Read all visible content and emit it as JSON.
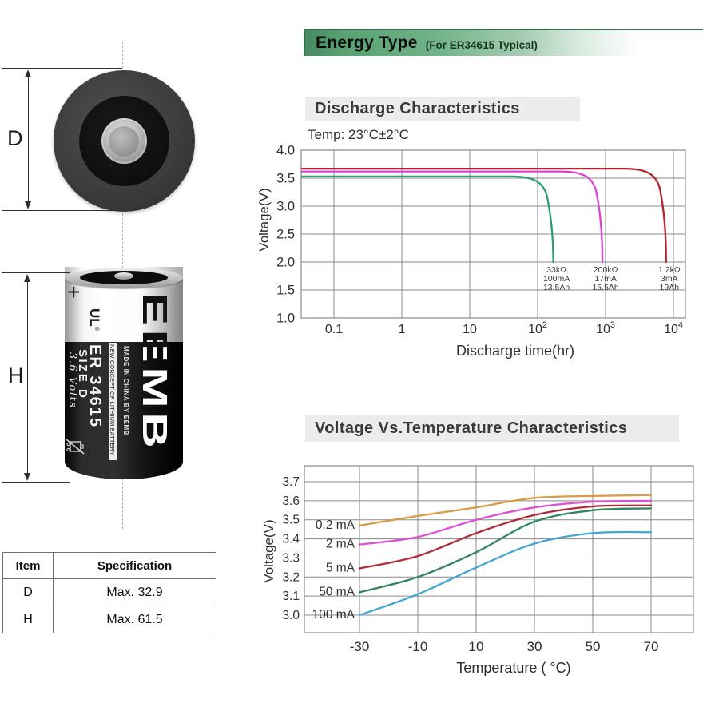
{
  "left_panel": {
    "dimension_d_label": "D",
    "dimension_h_label": "H",
    "battery": {
      "plus_label": "+",
      "ul_label": "UL",
      "reg_mark": "®",
      "brand_vertical": "EEMB",
      "model_text": "ER 34615",
      "size_text": "SIZE D",
      "volts_text": "3.6 Volts",
      "strip_text": "NEW CONCEPT OF LITHIUM BATTERY",
      "made_in_text": "MADE IN CHINA BY EEMB"
    },
    "spec_table": {
      "headers": [
        "Item",
        "Specification"
      ],
      "rows": [
        {
          "item": "D",
          "spec": "Max. 32.9"
        },
        {
          "item": "H",
          "spec": "Max. 61.5"
        }
      ]
    }
  },
  "header": {
    "title": "Energy Type",
    "subtitle": "(For ER34615 Typical)",
    "accent_green": "#468a61"
  },
  "section_headings": {
    "discharge": "Discharge Characteristics",
    "temperature": "Voltage Vs.Temperature Characteristics"
  },
  "chart_data": [
    {
      "type": "line",
      "title": "Discharge Characteristics",
      "note": "Temp: 23°C±2°C",
      "xlabel": "Discharge time(hr)",
      "ylabel": "Voltage(V)",
      "x_scale": "log",
      "x_ticks": [
        "0.1",
        "1",
        "10",
        "10^2",
        "10^3",
        "10^4"
      ],
      "y_ticks": [
        "4.0",
        "3.5",
        "3.0",
        "2.5",
        "2.0",
        "1.5",
        "1.0"
      ],
      "ylim": [
        1.0,
        4.0
      ],
      "grid": true,
      "grid_color": "#8a8a8a",
      "series": [
        {
          "name": "33kΩ 100mA 13.5Ah",
          "color": "#2aa06b",
          "plateau_v": 3.53,
          "end_hr": 170,
          "cutoff_v": 2.0,
          "label_lines": [
            "33kΩ",
            "100mA",
            "13.5Ah"
          ]
        },
        {
          "name": "200kΩ 17mA 15.5Ah",
          "color": "#d943d4",
          "plateau_v": 3.62,
          "end_hr": 900,
          "cutoff_v": 2.0,
          "label_lines": [
            "200kΩ",
            "17mA",
            "15.5Ah"
          ]
        },
        {
          "name": "1.2kΩ 3mA 19Ah",
          "color": "#b4232f",
          "plateau_v": 3.67,
          "end_hr": 7800,
          "cutoff_v": 2.0,
          "label_lines": [
            "1.2kΩ",
            "3mA",
            "19Ah"
          ]
        }
      ]
    },
    {
      "type": "line",
      "title": "Voltage Vs.Temperature Characteristics",
      "xlabel": "Temperature ( °C)",
      "ylabel": "Voltage(V)",
      "x": [
        -30,
        -10,
        10,
        30,
        50,
        70
      ],
      "x_ticks": [
        "-30",
        "-10",
        "10",
        "30",
        "50",
        "70"
      ],
      "y_ticks": [
        "3.7",
        "3.6",
        "3.5",
        "3.4",
        "3.3",
        "3.2",
        "3.1",
        "3.0"
      ],
      "ylim": [
        3.0,
        3.7
      ],
      "grid": true,
      "grid_color": "#8a8a8a",
      "legend_position": "left-inline",
      "series": [
        {
          "name": "0.2 mA",
          "color": "#d99b44",
          "values": [
            3.47,
            3.52,
            3.565,
            3.615,
            3.625,
            3.63
          ]
        },
        {
          "name": "2 mA",
          "color": "#dd4fd4",
          "values": [
            3.37,
            3.41,
            3.5,
            3.565,
            3.595,
            3.6
          ]
        },
        {
          "name": "5 mA",
          "color": "#b02c3a",
          "values": [
            3.245,
            3.31,
            3.43,
            3.525,
            3.57,
            3.575
          ]
        },
        {
          "name": "50 mA",
          "color": "#33855c",
          "values": [
            3.12,
            3.2,
            3.33,
            3.49,
            3.55,
            3.56
          ]
        },
        {
          "name": "100 mA",
          "color": "#43a6d2",
          "values": [
            3.0,
            3.11,
            3.25,
            3.375,
            3.43,
            3.435
          ]
        }
      ]
    }
  ]
}
